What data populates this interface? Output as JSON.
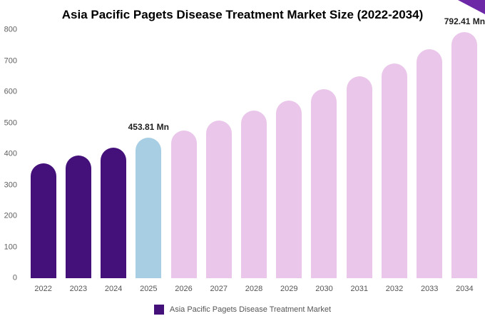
{
  "title": "Asia Pacific Pagets Disease Treatment Market Size (2022-2034)",
  "legend": {
    "label": "Asia Pacific Pagets Disease Treatment Market"
  },
  "colors": {
    "dark_purple": "#44107a",
    "light_blue": "#a7cee3",
    "light_pink": "#eac6ea",
    "corner_accent": "#6d28a8",
    "axis_text": "#5f5f5f",
    "annotation_text": "#1f1f1f"
  },
  "chart_data": {
    "type": "bar",
    "title": "Asia Pacific Pagets Disease Treatment Market Size (2022-2034)",
    "categories": [
      "2022",
      "2023",
      "2024",
      "2025",
      "2026",
      "2027",
      "2028",
      "2029",
      "2030",
      "2031",
      "2032",
      "2033",
      "2034"
    ],
    "values": [
      370,
      395,
      420,
      453.81,
      476,
      507,
      540,
      573,
      609,
      650,
      693,
      738,
      792.41
    ],
    "unit": "Mn",
    "xlabel": "",
    "ylabel": "",
    "ylim": [
      0,
      800
    ],
    "yticks": [
      0,
      100,
      200,
      300,
      400,
      500,
      600,
      700,
      800
    ],
    "grid": false,
    "legend_position": "bottom",
    "bar_color_map": [
      "dark_purple",
      "dark_purple",
      "dark_purple",
      "light_blue",
      "light_pink",
      "light_pink",
      "light_pink",
      "light_pink",
      "light_pink",
      "light_pink",
      "light_pink",
      "light_pink",
      "light_pink"
    ],
    "annotations": [
      {
        "category": "2025",
        "text": "453.81 Mn"
      },
      {
        "category": "2034",
        "text": "792.41 Mn"
      }
    ]
  }
}
